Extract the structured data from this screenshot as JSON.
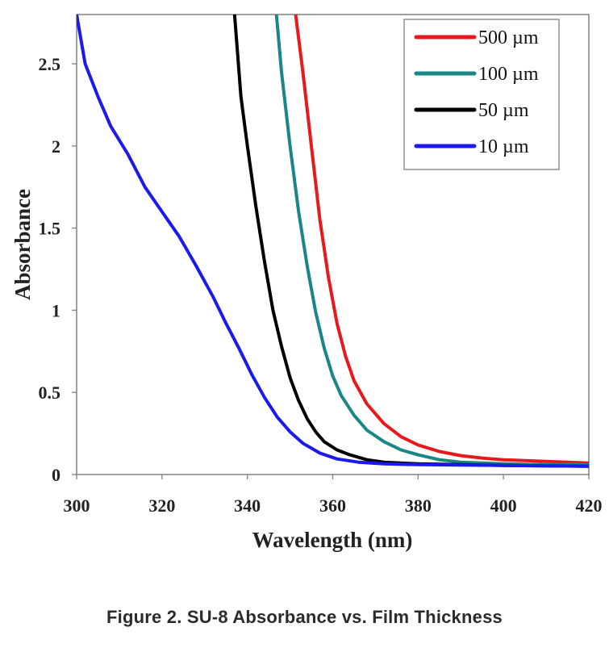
{
  "caption": "Figure 2. SU-8 Absorbance vs. Film Thickness",
  "chart_data": {
    "type": "line",
    "xlabel": "Wavelength (nm)",
    "ylabel": "Absorbance",
    "xlim": [
      300,
      420
    ],
    "ylim": [
      0,
      2.8
    ],
    "x_ticks": [
      300,
      320,
      340,
      360,
      380,
      400,
      420
    ],
    "y_ticks": [
      0,
      0.5,
      1,
      1.5,
      2,
      2.5
    ],
    "y_tick_labels": [
      "0",
      "0.5",
      "1",
      "1.5",
      "2",
      "2.5"
    ],
    "grid": false,
    "legend_position": "top-right",
    "series": [
      {
        "name": "500 µm",
        "color": "#e8191c",
        "points": [
          [
            351.3,
            2.8
          ],
          [
            353,
            2.45
          ],
          [
            355,
            2.0
          ],
          [
            357,
            1.55
          ],
          [
            359,
            1.2
          ],
          [
            361,
            0.92
          ],
          [
            363,
            0.72
          ],
          [
            365,
            0.57
          ],
          [
            368,
            0.43
          ],
          [
            372,
            0.31
          ],
          [
            376,
            0.23
          ],
          [
            380,
            0.18
          ],
          [
            385,
            0.14
          ],
          [
            390,
            0.115
          ],
          [
            395,
            0.1
          ],
          [
            400,
            0.09
          ],
          [
            410,
            0.08
          ],
          [
            420,
            0.07
          ]
        ]
      },
      {
        "name": "100 µm",
        "color": "#1a8686",
        "points": [
          [
            346.8,
            2.8
          ],
          [
            348,
            2.45
          ],
          [
            350,
            2.0
          ],
          [
            352,
            1.6
          ],
          [
            354,
            1.27
          ],
          [
            356,
            0.99
          ],
          [
            358,
            0.77
          ],
          [
            360,
            0.6
          ],
          [
            362,
            0.48
          ],
          [
            365,
            0.36
          ],
          [
            368,
            0.27
          ],
          [
            372,
            0.2
          ],
          [
            376,
            0.15
          ],
          [
            380,
            0.12
          ],
          [
            385,
            0.09
          ],
          [
            390,
            0.075
          ],
          [
            400,
            0.065
          ],
          [
            410,
            0.06
          ],
          [
            420,
            0.06
          ]
        ]
      },
      {
        "name": "50 µm",
        "color": "#000000",
        "points": [
          [
            337,
            2.8
          ],
          [
            338.5,
            2.3
          ],
          [
            340,
            2.0
          ],
          [
            342,
            1.63
          ],
          [
            344,
            1.3
          ],
          [
            346,
            1.0
          ],
          [
            348,
            0.78
          ],
          [
            350,
            0.59
          ],
          [
            352,
            0.45
          ],
          [
            354,
            0.34
          ],
          [
            356,
            0.26
          ],
          [
            358,
            0.2
          ],
          [
            361,
            0.15
          ],
          [
            364,
            0.12
          ],
          [
            368,
            0.09
          ],
          [
            372,
            0.075
          ],
          [
            380,
            0.065
          ],
          [
            390,
            0.06
          ],
          [
            400,
            0.055
          ],
          [
            420,
            0.05
          ]
        ]
      },
      {
        "name": "10 µm",
        "color": "#1a1aee",
        "points": [
          [
            300,
            2.8
          ],
          [
            302,
            2.5
          ],
          [
            305,
            2.3
          ],
          [
            308,
            2.12
          ],
          [
            312,
            1.95
          ],
          [
            316,
            1.75
          ],
          [
            320,
            1.6
          ],
          [
            324,
            1.45
          ],
          [
            328,
            1.27
          ],
          [
            332,
            1.08
          ],
          [
            335,
            0.92
          ],
          [
            338,
            0.77
          ],
          [
            341,
            0.61
          ],
          [
            344,
            0.47
          ],
          [
            347,
            0.35
          ],
          [
            350,
            0.26
          ],
          [
            353,
            0.19
          ],
          [
            357,
            0.13
          ],
          [
            361,
            0.095
          ],
          [
            366,
            0.075
          ],
          [
            372,
            0.065
          ],
          [
            380,
            0.06
          ],
          [
            400,
            0.055
          ],
          [
            420,
            0.05
          ]
        ]
      }
    ]
  }
}
